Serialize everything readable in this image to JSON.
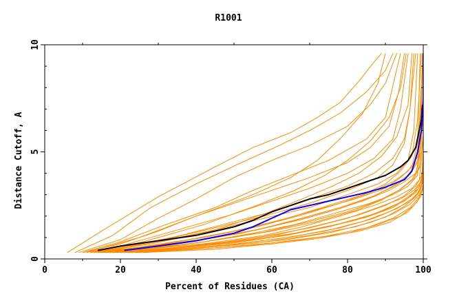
{
  "chart_data": {
    "type": "line",
    "title": "R1001",
    "xlabel": "Percent of Residues (CA)",
    "ylabel": "Distance Cutoff, A",
    "xlim": [
      0,
      100
    ],
    "ylim": [
      0,
      10
    ],
    "xticks": [
      0,
      20,
      40,
      60,
      80,
      100
    ],
    "yticks": [
      0,
      5,
      10
    ],
    "grid": false,
    "legend": "none",
    "colors": {
      "orange": "#ff8c00",
      "black": "#000000",
      "blue": "#0000ff"
    },
    "series": [
      {
        "color": "#0000ff",
        "x": [
          21,
          30,
          40,
          50,
          55,
          60,
          65,
          70,
          75,
          80,
          85,
          90,
          95,
          97,
          98.5,
          99.5,
          100,
          100
        ],
        "y": [
          0.4,
          0.6,
          0.85,
          1.2,
          1.5,
          1.9,
          2.3,
          2.5,
          2.7,
          2.9,
          3.1,
          3.35,
          3.7,
          4.1,
          5,
          6,
          7.5,
          9.6
        ]
      },
      {
        "color": "#000000",
        "x": [
          14,
          20,
          30,
          40,
          50,
          55,
          60,
          65,
          70,
          75,
          80,
          85,
          90,
          94,
          96,
          98,
          99.5,
          99.8
        ],
        "y": [
          0.4,
          0.6,
          0.85,
          1.1,
          1.5,
          1.8,
          2.2,
          2.5,
          2.8,
          3.0,
          3.3,
          3.6,
          3.9,
          4.3,
          4.6,
          5.2,
          6.5,
          7.2
        ]
      },
      {
        "color": "#ff8c00",
        "x": [
          6,
          15,
          30,
          45,
          55,
          65,
          72,
          78,
          83,
          87,
          89
        ],
        "y": [
          0.3,
          1.3,
          2.9,
          4.3,
          5.2,
          5.9,
          6.6,
          7.3,
          8.3,
          9.2,
          9.6
        ]
      },
      {
        "color": "#ff8c00",
        "x": [
          8,
          18,
          28,
          40,
          52,
          62,
          70,
          78,
          85,
          90,
          92
        ],
        "y": [
          0.3,
          1.1,
          2.4,
          3.5,
          4.5,
          5.3,
          6.0,
          6.8,
          7.8,
          8.8,
          9.6
        ]
      },
      {
        "color": "#ff8c00",
        "x": [
          9,
          20,
          30,
          40,
          50,
          60,
          70,
          80,
          86,
          90,
          93
        ],
        "y": [
          0.3,
          0.9,
          1.9,
          2.8,
          3.8,
          4.6,
          5.3,
          6.2,
          7.2,
          8.2,
          9.6
        ]
      },
      {
        "color": "#ff8c00",
        "x": [
          10,
          20,
          32,
          45,
          55,
          65,
          75,
          85,
          90,
          94
        ],
        "y": [
          0.3,
          0.8,
          1.6,
          2.4,
          3.2,
          3.9,
          4.6,
          5.6,
          6.6,
          9.6
        ]
      },
      {
        "color": "#ff8c00",
        "x": [
          10,
          20,
          30,
          40,
          50,
          60,
          70,
          80,
          86,
          91,
          93.5,
          95
        ],
        "y": [
          0.3,
          0.7,
          1.3,
          2.0,
          2.6,
          3.2,
          3.8,
          4.5,
          5.2,
          6.2,
          7.8,
          9.6
        ]
      },
      {
        "color": "#ff8c00",
        "x": [
          11,
          20,
          30,
          40,
          50,
          60,
          70,
          80,
          87,
          92,
          94,
          96
        ],
        "y": [
          0.3,
          0.6,
          1.1,
          1.6,
          2.1,
          2.7,
          3.3,
          4.0,
          4.7,
          5.6,
          7.0,
          9.6
        ]
      },
      {
        "color": "#ff8c00",
        "x": [
          12,
          22,
          34,
          46,
          58,
          70,
          80,
          88,
          92,
          95,
          96.5,
          97.5
        ],
        "y": [
          0.3,
          0.6,
          1.0,
          1.5,
          2.0,
          2.6,
          3.2,
          3.8,
          4.4,
          5.4,
          7.0,
          9.6
        ]
      },
      {
        "color": "#ff8c00",
        "x": [
          12,
          22,
          34,
          46,
          58,
          70,
          80,
          88,
          93,
          96,
          97.5,
          98.5
        ],
        "y": [
          0.3,
          0.55,
          0.95,
          1.4,
          1.9,
          2.4,
          3.0,
          3.5,
          4.0,
          4.6,
          6.0,
          9.6
        ]
      },
      {
        "color": "#ff8c00",
        "x": [
          13,
          25,
          38,
          50,
          62,
          72,
          82,
          90,
          94,
          97,
          98.5,
          99.2
        ],
        "y": [
          0.3,
          0.55,
          0.9,
          1.3,
          1.8,
          2.3,
          2.8,
          3.3,
          3.8,
          4.3,
          5.4,
          9.6
        ]
      },
      {
        "color": "#ff8c00",
        "x": [
          14,
          26,
          40,
          52,
          64,
          74,
          84,
          91,
          95,
          98,
          99.3,
          99.8
        ],
        "y": [
          0.3,
          0.5,
          0.85,
          1.2,
          1.7,
          2.2,
          2.7,
          3.2,
          3.6,
          4.0,
          5.0,
          9.6
        ]
      },
      {
        "color": "#ff8c00",
        "x": [
          15,
          28,
          42,
          55,
          66,
          76,
          86,
          92,
          96,
          98.5,
          99.5
        ],
        "y": [
          0.3,
          0.5,
          0.8,
          1.2,
          1.6,
          2.1,
          2.6,
          3.0,
          3.4,
          3.9,
          7.5
        ]
      },
      {
        "color": "#ff8c00",
        "x": [
          16,
          30,
          44,
          58,
          68,
          78,
          87,
          93,
          97,
          99,
          99.8
        ],
        "y": [
          0.3,
          0.5,
          0.75,
          1.1,
          1.5,
          2.0,
          2.5,
          2.9,
          3.3,
          3.7,
          5.5
        ]
      },
      {
        "color": "#ff8c00",
        "x": [
          17,
          30,
          45,
          58,
          70,
          80,
          88,
          94,
          97.5,
          99.3,
          100
        ],
        "y": [
          0.3,
          0.45,
          0.7,
          1.05,
          1.45,
          1.9,
          2.4,
          2.8,
          3.2,
          3.6,
          4.5
        ]
      },
      {
        "color": "#ff8c00",
        "x": [
          18,
          32,
          46,
          60,
          72,
          82,
          90,
          95,
          98,
          99.5,
          100
        ],
        "y": [
          0.3,
          0.45,
          0.7,
          1.0,
          1.4,
          1.8,
          2.3,
          2.7,
          3.1,
          3.5,
          4.3
        ]
      },
      {
        "color": "#ff8c00",
        "x": [
          20,
          34,
          48,
          62,
          74,
          84,
          91,
          95.5,
          98.5,
          99.6,
          100
        ],
        "y": [
          0.3,
          0.45,
          0.65,
          0.95,
          1.3,
          1.75,
          2.2,
          2.6,
          3.0,
          3.4,
          4.0
        ]
      },
      {
        "color": "#ff8c00",
        "x": [
          22,
          36,
          50,
          64,
          76,
          86,
          92,
          96.5,
          99,
          100
        ],
        "y": [
          0.3,
          0.45,
          0.65,
          0.9,
          1.25,
          1.7,
          2.1,
          2.55,
          3.0,
          3.8
        ]
      },
      {
        "color": "#ff8c00",
        "x": [
          24,
          40,
          55,
          68,
          80,
          88,
          94,
          97.5,
          99.3,
          100
        ],
        "y": [
          0.3,
          0.45,
          0.65,
          0.9,
          1.2,
          1.6,
          2.0,
          2.5,
          2.9,
          3.5
        ]
      },
      {
        "color": "#ff8c00",
        "x": [
          26,
          45,
          60,
          72,
          83,
          91,
          96,
          98.5,
          100
        ],
        "y": [
          0.3,
          0.45,
          0.7,
          0.95,
          1.3,
          1.7,
          2.2,
          2.7,
          3.4
        ]
      },
      {
        "color": "#ff8c00",
        "x": [
          11,
          25,
          40,
          55,
          65,
          72,
          78,
          84,
          88,
          90
        ],
        "y": [
          0.3,
          1.0,
          2.0,
          3.0,
          3.8,
          4.6,
          5.6,
          6.8,
          8.2,
          9.6
        ]
      },
      {
        "color": "#ff8c00",
        "x": [
          12,
          26,
          42,
          56,
          66,
          74,
          80,
          86,
          91,
          94,
          95.5
        ],
        "y": [
          0.3,
          0.8,
          1.6,
          2.5,
          3.2,
          3.9,
          4.6,
          5.5,
          6.6,
          8.0,
          9.6
        ]
      },
      {
        "color": "#ff8c00",
        "x": [
          13,
          28,
          44,
          58,
          68,
          76,
          83,
          89,
          93,
          96,
          97
        ],
        "y": [
          0.3,
          0.7,
          1.3,
          2.1,
          2.8,
          3.4,
          4.0,
          4.8,
          5.7,
          7.2,
          9.6
        ]
      },
      {
        "color": "#ff8c00",
        "x": [
          12,
          24,
          36,
          48,
          60,
          70,
          80,
          87,
          92,
          95,
          96.5,
          98
        ],
        "y": [
          0.3,
          0.65,
          1.1,
          1.65,
          2.2,
          2.8,
          3.4,
          4.0,
          4.7,
          5.6,
          7.0,
          9.6
        ]
      },
      {
        "color": "#ff8c00",
        "x": [
          14,
          27,
          40,
          53,
          65,
          75,
          84,
          90,
          94,
          97,
          98.5,
          99.5
        ],
        "y": [
          0.3,
          0.55,
          0.95,
          1.4,
          1.95,
          2.5,
          3.0,
          3.5,
          4.1,
          4.8,
          6.5,
          9.6
        ]
      },
      {
        "color": "#ff8c00",
        "x": [
          15,
          28,
          42,
          56,
          68,
          78,
          86,
          92,
          96,
          98.5,
          99.7
        ],
        "y": [
          0.3,
          0.5,
          0.9,
          1.35,
          1.85,
          2.35,
          2.85,
          3.4,
          3.9,
          4.6,
          9.0
        ]
      },
      {
        "color": "#ff8c00",
        "x": [
          16,
          30,
          44,
          58,
          70,
          80,
          88,
          93.5,
          97,
          99,
          99.9
        ],
        "y": [
          0.3,
          0.5,
          0.85,
          1.25,
          1.75,
          2.2,
          2.7,
          3.2,
          3.7,
          4.3,
          6.5
        ]
      },
      {
        "color": "#ff8c00",
        "x": [
          18,
          33,
          48,
          62,
          73,
          83,
          90,
          95,
          98,
          99.6,
          100
        ],
        "y": [
          0.3,
          0.5,
          0.8,
          1.15,
          1.6,
          2.05,
          2.5,
          2.95,
          3.4,
          3.9,
          5.0
        ]
      },
      {
        "color": "#ff8c00",
        "x": [
          19,
          35,
          50,
          64,
          75,
          85,
          92,
          96,
          98.8,
          100
        ],
        "y": [
          0.3,
          0.5,
          0.75,
          1.1,
          1.5,
          1.95,
          2.4,
          2.85,
          3.3,
          4.1
        ]
      },
      {
        "color": "#ff8c00",
        "x": [
          21,
          38,
          52,
          66,
          78,
          87,
          93,
          97,
          99.2,
          100
        ],
        "y": [
          0.3,
          0.5,
          0.72,
          1.05,
          1.45,
          1.9,
          2.35,
          2.8,
          3.2,
          3.9
        ]
      },
      {
        "color": "#ff8c00",
        "x": [
          23,
          40,
          56,
          70,
          82,
          90,
          95,
          98,
          100
        ],
        "y": [
          0.3,
          0.5,
          0.75,
          1.1,
          1.5,
          1.95,
          2.45,
          2.9,
          3.6
        ]
      },
      {
        "color": "#ff8c00",
        "x": [
          25,
          44,
          60,
          74,
          85,
          92,
          96.5,
          99,
          100
        ],
        "y": [
          0.3,
          0.5,
          0.75,
          1.05,
          1.45,
          1.9,
          2.4,
          2.9,
          3.3
        ]
      },
      {
        "color": "#ff8c00",
        "x": [
          14,
          28,
          42,
          56,
          68,
          78,
          86,
          92,
          96,
          98.6,
          99.6
        ],
        "y": [
          0.3,
          0.6,
          1.0,
          1.5,
          2.05,
          2.6,
          3.1,
          3.6,
          4.1,
          4.8,
          8.0
        ]
      },
      {
        "color": "#ff8c00",
        "x": [
          17,
          31,
          46,
          60,
          72,
          82,
          89,
          94,
          97.5,
          99.4,
          100
        ],
        "y": [
          0.3,
          0.55,
          0.9,
          1.3,
          1.75,
          2.25,
          2.75,
          3.25,
          3.75,
          4.4,
          5.8
        ]
      },
      {
        "color": "#ff8c00",
        "x": [
          20,
          36,
          52,
          66,
          78,
          87,
          93.5,
          97.5,
          99.5,
          100
        ],
        "y": [
          0.3,
          0.55,
          0.85,
          1.2,
          1.65,
          2.1,
          2.6,
          3.1,
          3.6,
          4.6
        ]
      },
      {
        "color": "#ff8c00",
        "x": [
          15,
          29,
          43,
          57,
          69,
          79,
          87,
          93,
          96.5,
          98.8,
          99.8
        ],
        "y": [
          0.3,
          0.6,
          0.95,
          1.4,
          1.95,
          2.45,
          2.95,
          3.45,
          3.95,
          4.6,
          7.0
        ]
      }
    ]
  }
}
